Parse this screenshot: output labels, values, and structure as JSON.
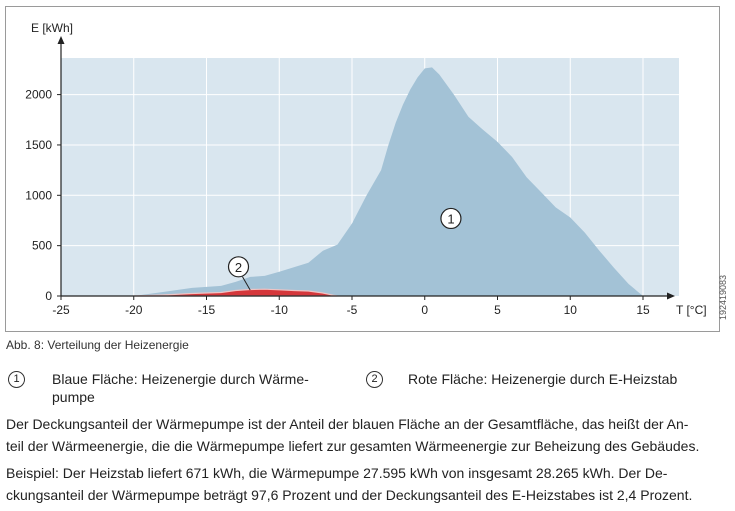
{
  "caption": "Abb. 8: Verteilung der Heizenergie",
  "legend": [
    {
      "marker": "1",
      "text_line1": "Blaue Fläche: Heizenergie durch Wärme-",
      "text_line2": "pumpe"
    },
    {
      "marker": "2",
      "text_line1": "Rote Fläche: Heizenergie durch E-Heizstab",
      "text_line2": ""
    }
  ],
  "paragraphs": [
    {
      "line1": "Der Deckungsanteil der Wärmepumpe ist der Anteil der blauen Fläche an der Gesamtfläche, das heißt der An-",
      "line2": "teil der Wärmeenergie, die die Wärmepumpe liefert zur gesamten Wärmeenergie zur Beheizung des Gebäudes."
    },
    {
      "line1": "Beispiel: Der Heizstab liefert 671 kWh, die Wärmepumpe 27.595 kWh von insgesamt 28.265 kWh. Der De-",
      "line2": "ckungsanteil der Wärmepumpe beträgt 97,6 Prozent und der Deckungsanteil des E-Heizstabes ist 2,4 Prozent."
    }
  ],
  "figure_code": "192419083",
  "chart_data": {
    "type": "area",
    "xlabel": "T [°C]",
    "ylabel": "E [kWh]",
    "xlim": [
      -25,
      17
    ],
    "ylim": [
      0,
      2350
    ],
    "x_ticks": [
      "-25",
      "-20",
      "-15",
      "-10",
      "-5",
      "0",
      "5",
      "10",
      "15"
    ],
    "x_tick_values": [
      -25,
      -20,
      -15,
      -10,
      -5,
      0,
      5,
      10,
      15
    ],
    "y_ticks": [
      "0",
      "500",
      "1000",
      "1500",
      "2000"
    ],
    "y_tick_values": [
      0,
      500,
      1000,
      1500,
      2000
    ],
    "grid": true,
    "colors": {
      "plot_bg": "#d9e6ef",
      "area1": "#a3c2d6",
      "area2": "#d5373b",
      "area2_edge": "#f0c4c4",
      "grid": "#ffffff",
      "axis": "#222222"
    },
    "annotations": [
      {
        "label": "1",
        "x": 1.8,
        "y": 770
      },
      {
        "label": "2",
        "x": -12.8,
        "y": 290,
        "arrow_to_x": -12.0,
        "arrow_to_y": 60
      }
    ],
    "series": [
      {
        "name": "1",
        "x": [
          -20,
          -18,
          -16,
          -14,
          -13,
          -12,
          -11,
          -10,
          -8,
          -7,
          -6,
          -5,
          -4,
          -3,
          -2.5,
          -2,
          -1.5,
          -1,
          -0.5,
          0,
          0.5,
          1,
          2,
          3,
          4,
          5,
          6,
          7,
          8,
          9,
          10,
          11,
          12,
          13,
          14,
          15
        ],
        "values": [
          0,
          40,
          80,
          100,
          140,
          190,
          200,
          240,
          330,
          450,
          510,
          720,
          1000,
          1250,
          1500,
          1720,
          1900,
          2050,
          2170,
          2260,
          2270,
          2200,
          2000,
          1780,
          1650,
          1530,
          1380,
          1180,
          1030,
          880,
          780,
          630,
          450,
          280,
          120,
          0
        ]
      },
      {
        "name": "2",
        "x": [
          -20,
          -18,
          -16,
          -14,
          -13,
          -12,
          -11,
          -10,
          -9,
          -8,
          -7,
          -6.3,
          -6
        ],
        "values": [
          0,
          10,
          25,
          35,
          55,
          65,
          68,
          62,
          55,
          50,
          30,
          8,
          0
        ]
      }
    ]
  }
}
